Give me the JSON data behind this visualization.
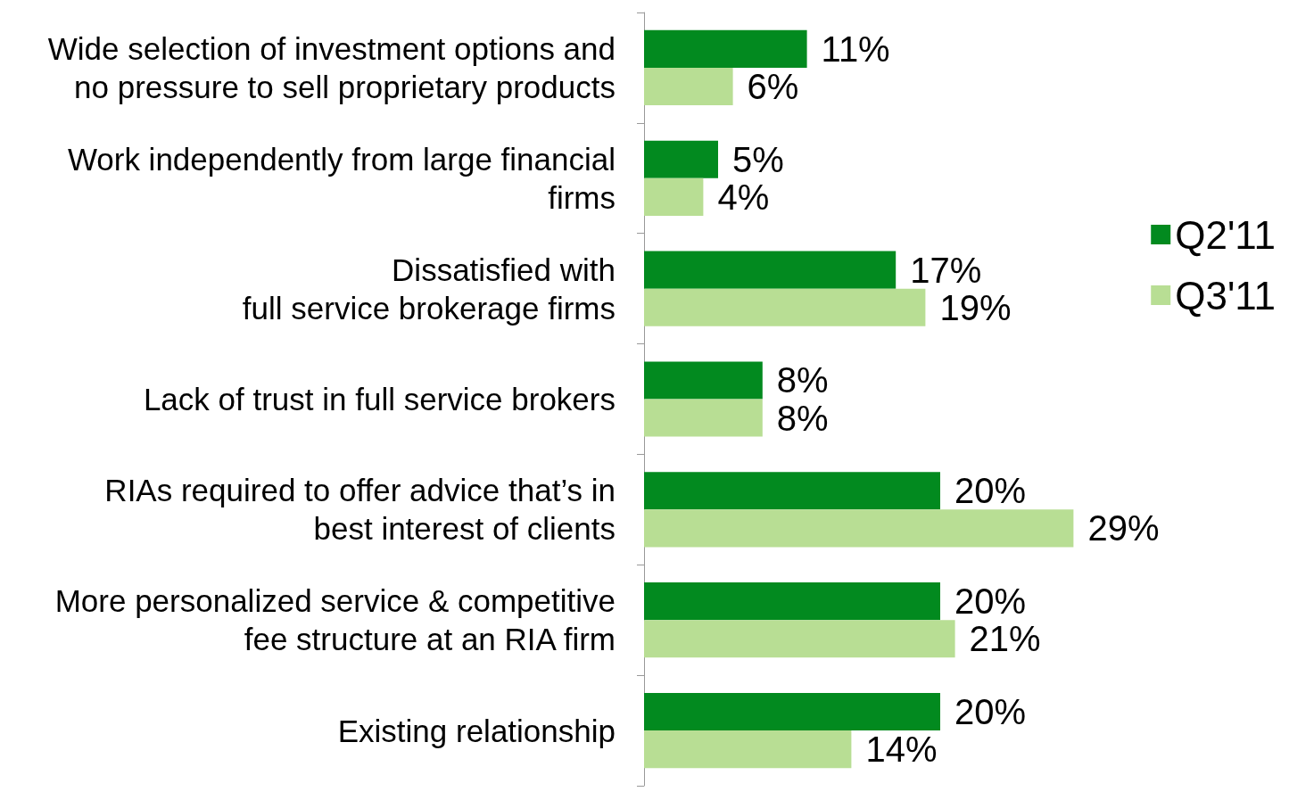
{
  "chart_data": {
    "type": "bar",
    "orientation": "horizontal",
    "categories": [
      "Wide selection of investment options and\nno pressure to sell proprietary products",
      "Work independently from large financial\nfirms",
      "Dissatisfied with\nfull service brokerage firms",
      "Lack of trust in full service brokers",
      "RIAs required to offer advice that’s in\nbest interest of clients",
      "More personalized service & competitive\nfee structure at an RIA firm",
      "Existing relationship"
    ],
    "series": [
      {
        "name": "Q2'11",
        "color": "#028a1f",
        "values": [
          11,
          5,
          17,
          8,
          20,
          20,
          20
        ],
        "value_labels": [
          "11%",
          "5%",
          "17%",
          "8%",
          "20%",
          "20%",
          "20%"
        ]
      },
      {
        "name": "Q3'11",
        "color": "#b8de94",
        "values": [
          6,
          4,
          19,
          8,
          29,
          21,
          14
        ],
        "value_labels": [
          "6%",
          "4%",
          "19%",
          "8%",
          "29%",
          "21%",
          "14%"
        ]
      }
    ],
    "legend": "right"
  }
}
